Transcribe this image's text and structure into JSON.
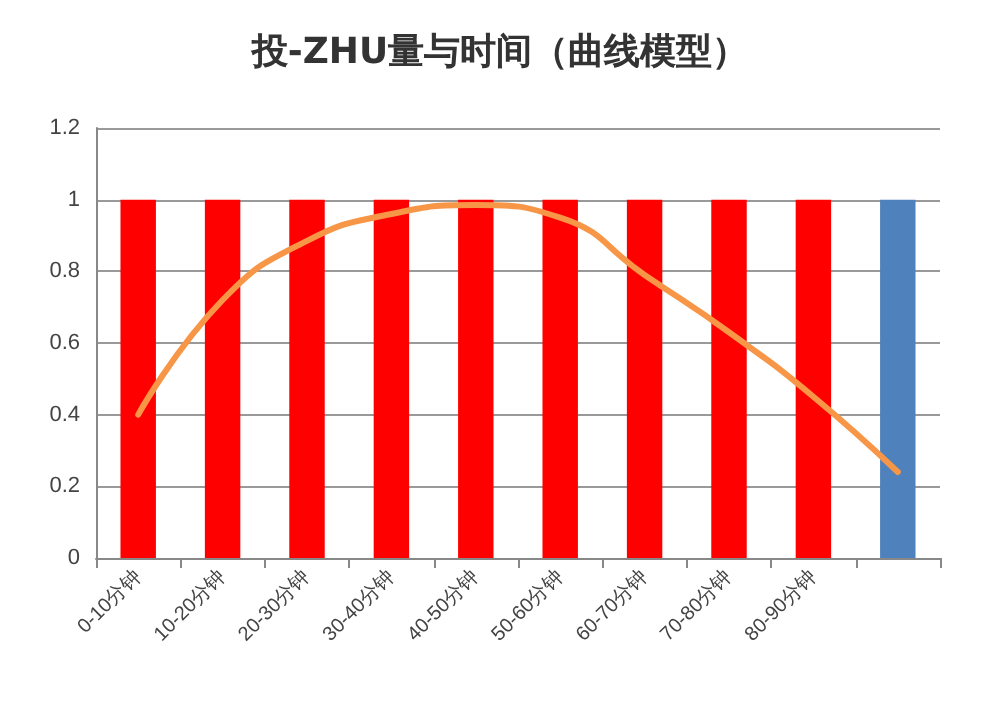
{
  "chart_data": {
    "type": "bar",
    "title": "投-ZHU量与时间（曲线模型）",
    "categories": [
      "0-10分钟",
      "10-20分钟",
      "20-30分钟",
      "30-40分钟",
      "40-50分钟",
      "50-60分钟",
      "60-70分钟",
      "70-80分钟",
      "80-90分钟",
      null
    ],
    "series": [
      {
        "values": [
          1,
          1,
          1,
          1,
          1,
          1,
          1,
          1,
          1,
          1
        ],
        "colors": [
          "#ff0000",
          "#ff0000",
          "#ff0000",
          "#ff0000",
          "#ff0000",
          "#ff0000",
          "#ff0000",
          "#ff0000",
          "#ff0000",
          "#4f81bd"
        ]
      },
      {
        "type": "line",
        "color": "#f79646",
        "values": [
          0.4,
          0.72,
          0.885,
          0.96,
          0.985,
          0.95,
          0.79,
          0.63,
          0.45,
          0.24
        ]
      }
    ],
    "ylim": [
      0,
      1.2
    ],
    "yticks": [
      0,
      0.2,
      0.4,
      0.6,
      0.8,
      1,
      1.2
    ],
    "grid": "y",
    "marker": "none"
  }
}
